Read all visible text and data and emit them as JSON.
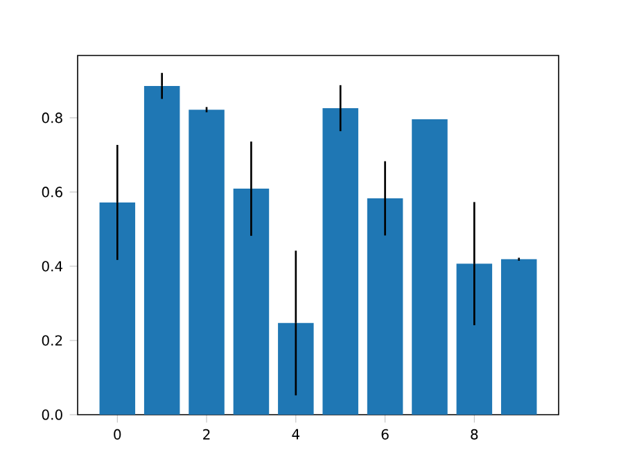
{
  "chart_data": {
    "type": "bar",
    "x": [
      0,
      1,
      2,
      3,
      4,
      5,
      6,
      7,
      8,
      9
    ],
    "values": [
      0.572,
      0.886,
      0.822,
      0.609,
      0.247,
      0.826,
      0.583,
      0.796,
      0.407,
      0.419
    ],
    "errors": [
      0.155,
      0.035,
      0.007,
      0.127,
      0.195,
      0.062,
      0.1,
      null,
      0.166,
      0.004
    ],
    "color": "#1f77b4",
    "xlim": [
      -0.89,
      9.89
    ],
    "ylim": [
      0,
      0.968
    ],
    "xticks": [
      0,
      2,
      4,
      6,
      8
    ],
    "yticks": [
      {
        "value": 0,
        "label": "0.0"
      },
      0.2,
      0.4,
      0.6,
      0.8
    ]
  }
}
